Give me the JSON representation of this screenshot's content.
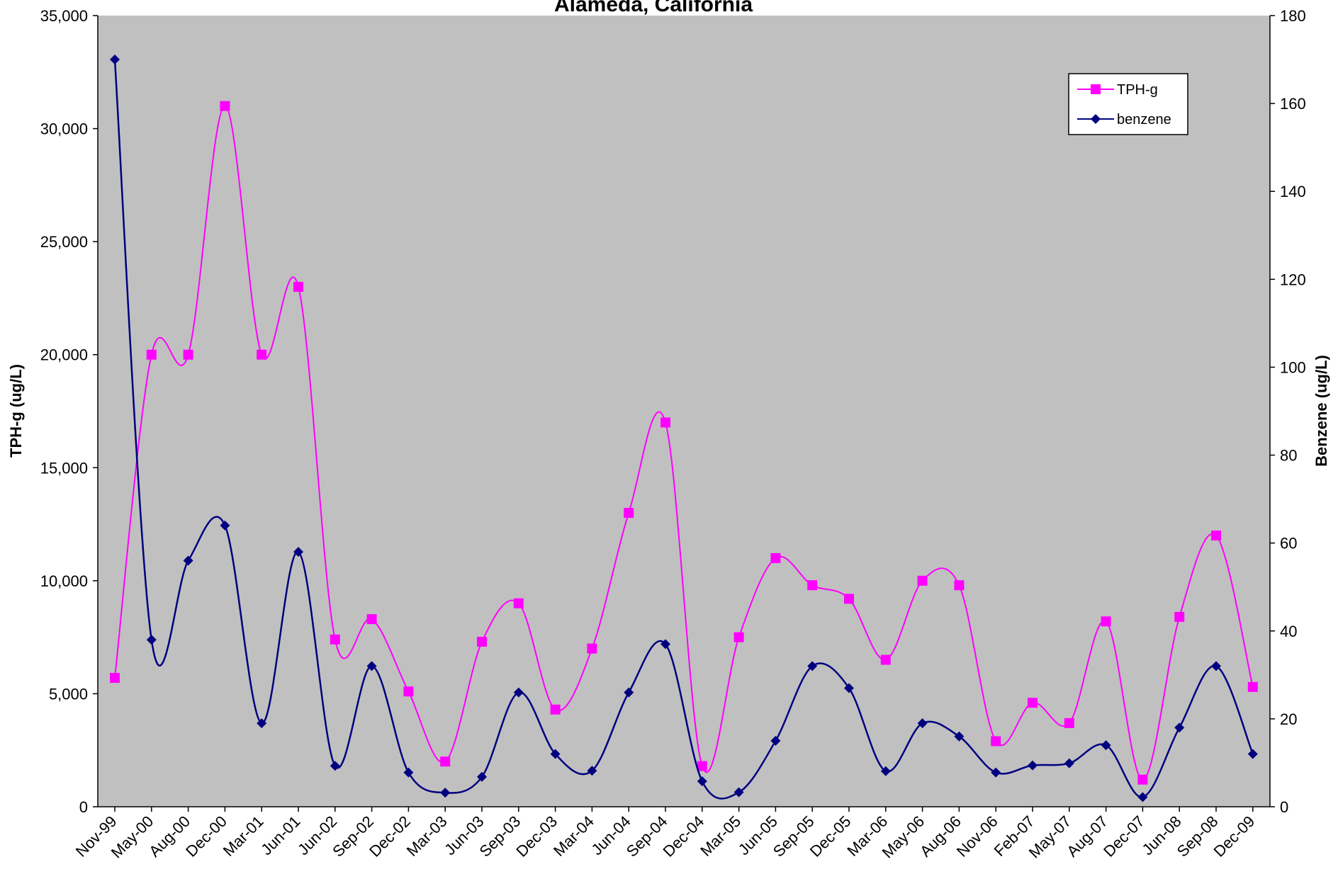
{
  "chart_data": {
    "type": "line",
    "title": "Alameda, California",
    "categories": [
      "Nov-99",
      "May-00",
      "Aug-00",
      "Dec-00",
      "Mar-01",
      "Jun-01",
      "Jun-02",
      "Sep-02",
      "Dec-02",
      "Mar-03",
      "Jun-03",
      "Sep-03",
      "Dec-03",
      "Mar-04",
      "Jun-04",
      "Sep-04",
      "Dec-04",
      "Mar-05",
      "Jun-05",
      "Sep-05",
      "Dec-05",
      "Mar-06",
      "May-06",
      "Aug-06",
      "Nov-06",
      "Feb-07",
      "May-07",
      "Aug-07",
      "Dec-07",
      "Jun-08",
      "Sep-08",
      "Dec-09"
    ],
    "ylabel": "TPH-g (ug/L)",
    "y2label": "Benzene (ug/L)",
    "ylim": [
      0,
      35000
    ],
    "y2lim": [
      0,
      180
    ],
    "yticks": [
      0,
      5000,
      10000,
      15000,
      20000,
      25000,
      30000,
      35000
    ],
    "ytick_labels": [
      "0",
      "5,000",
      "10,000",
      "15,000",
      "20,000",
      "25,000",
      "30,000",
      "35,000"
    ],
    "y2ticks": [
      0,
      20,
      40,
      60,
      80,
      100,
      120,
      140,
      160,
      180
    ],
    "y2tick_labels": [
      "0",
      "20",
      "40",
      "60",
      "80",
      "100",
      "120",
      "140",
      "160",
      "180"
    ],
    "grid": false,
    "background": "#c0c0c0",
    "legend_position": "top-right",
    "series": [
      {
        "name": "TPH-g",
        "axis": "left",
        "color": "#ff00ff",
        "marker": "square",
        "values": [
          5700,
          20000,
          20000,
          31000,
          20000,
          23000,
          7400,
          8300,
          5100,
          2000,
          7300,
          9000,
          4300,
          7000,
          13000,
          17000,
          1800,
          7500,
          11000,
          9800,
          9200,
          6500,
          10000,
          9800,
          2900,
          4600,
          3700,
          8200,
          1200,
          8400,
          12000,
          5300
        ]
      },
      {
        "name": "benzene",
        "axis": "right",
        "color": "#000080",
        "marker": "diamond",
        "values": [
          170,
          38,
          56,
          64,
          19,
          58,
          9.3,
          32,
          7.8,
          3.2,
          6.8,
          26,
          12,
          8.2,
          26,
          37,
          5.8,
          3.3,
          15,
          32,
          27,
          8.1,
          19,
          16,
          7.8,
          9.4,
          9.9,
          14,
          2.2,
          18,
          32,
          12
        ]
      }
    ]
  }
}
